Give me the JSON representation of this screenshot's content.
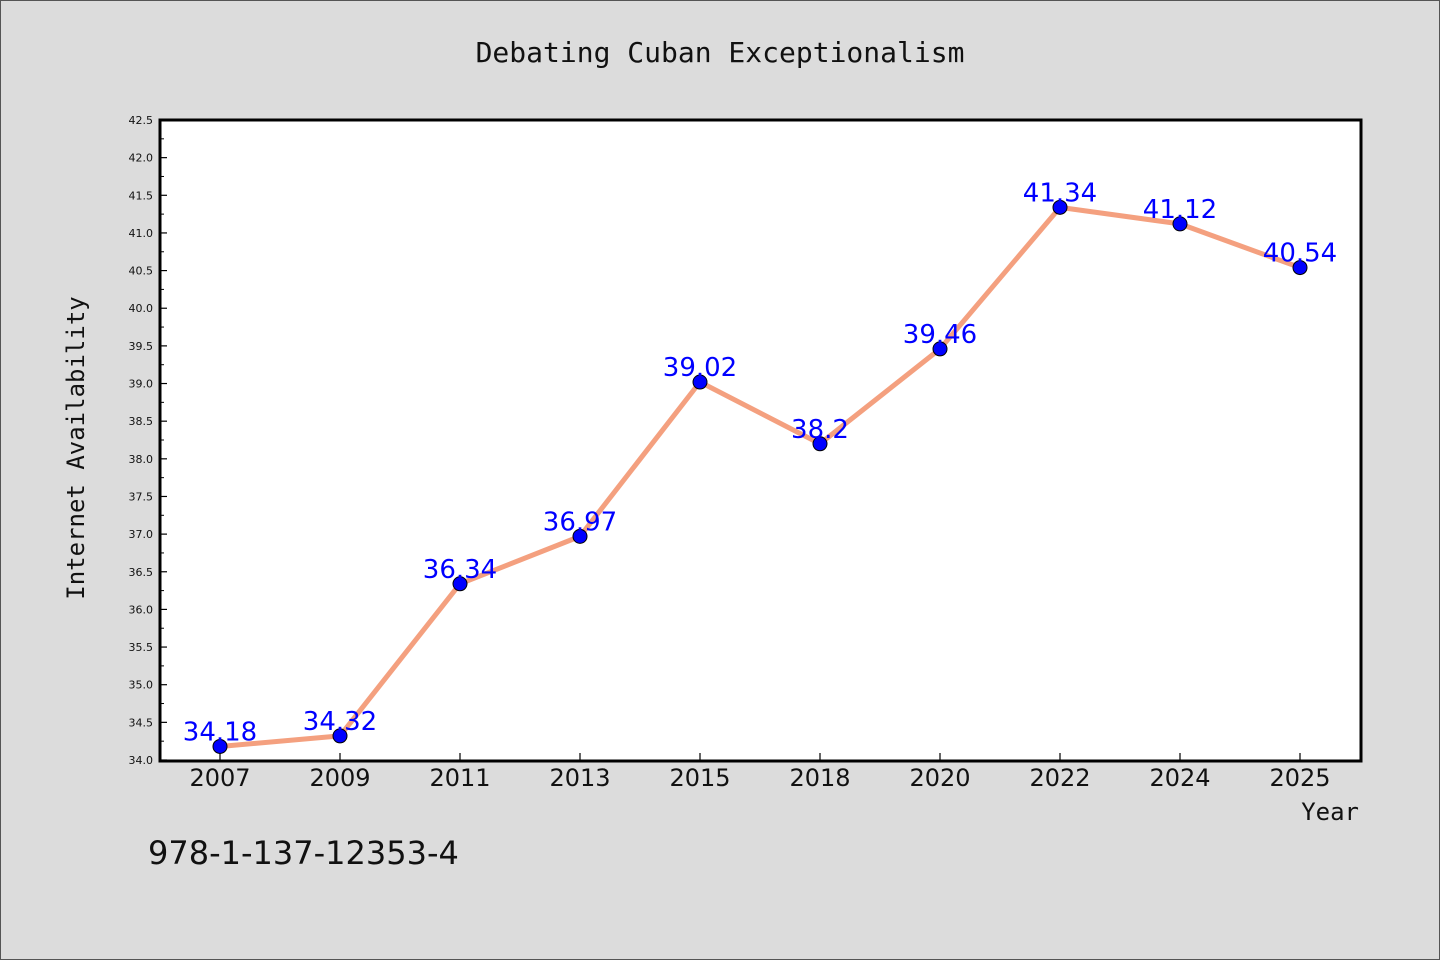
{
  "footer_text": "978-1-137-12353-4",
  "colors": {
    "background": "#dcdcdc",
    "plot_background": "#ffffff",
    "line": "#f4a07f",
    "marker": "#0000ff",
    "data_label": "#0000ff"
  },
  "chart_data": {
    "type": "line",
    "title": "Debating Cuban Exceptionalism",
    "xlabel": "Year",
    "ylabel": "Internet Availability",
    "categories": [
      "2007",
      "2009",
      "2011",
      "2013",
      "2015",
      "2018",
      "2020",
      "2022",
      "2024",
      "2025"
    ],
    "values": [
      34.18,
      34.32,
      36.34,
      36.97,
      39.02,
      38.2,
      39.46,
      41.34,
      41.12,
      40.54
    ],
    "data_labels": [
      "34.18",
      "34.32",
      "36.34",
      "36.97",
      "39.02",
      "38.2",
      "39.46",
      "41.34",
      "41.12",
      "40.54"
    ],
    "ylim": [
      34.0,
      42.5
    ],
    "yticks": [
      "34.0",
      "34.5",
      "35.0",
      "35.5",
      "36.0",
      "36.5",
      "37.0",
      "37.5",
      "38.0",
      "38.5",
      "39.0",
      "39.5",
      "40.0",
      "40.5",
      "41.0",
      "41.5",
      "42.0",
      "42.5"
    ],
    "grid": false,
    "legend": "none"
  }
}
